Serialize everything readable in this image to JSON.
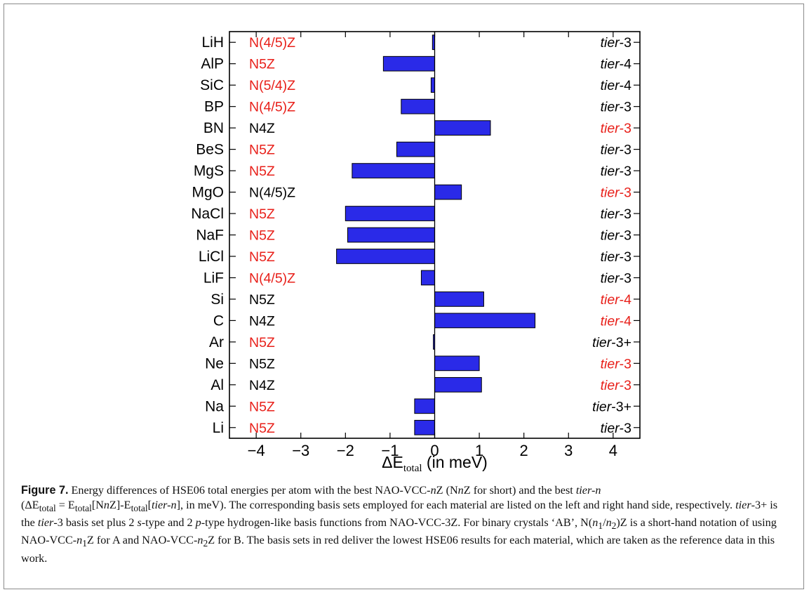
{
  "chart_data": {
    "type": "bar",
    "orientation": "horizontal",
    "xlabel_main": "ΔE",
    "xlabel_sub": "total",
    "xlabel_unit": "(in meV)",
    "xlim": [
      -4.6,
      4.6
    ],
    "xticks": [
      -4,
      -3,
      -2,
      -1,
      0,
      1,
      2,
      3,
      4
    ],
    "bar_color": "#2a2ae8",
    "bar_edge": "#000000",
    "highlight_color": "#e8201a",
    "normal_color": "#000000",
    "tier_prefix": "tier",
    "categories": [
      "LiH",
      "AlP",
      "SiC",
      "BP",
      "BN",
      "BeS",
      "MgS",
      "MgO",
      "NaCl",
      "NaF",
      "LiCl",
      "LiF",
      "Si",
      "C",
      "Ar",
      "Ne",
      "Al",
      "Na",
      "Li"
    ],
    "values": [
      -0.05,
      -1.15,
      -0.08,
      -0.75,
      1.25,
      -0.85,
      -1.85,
      0.6,
      -2.0,
      -1.95,
      -2.2,
      -0.3,
      1.1,
      2.25,
      -0.03,
      1.0,
      1.05,
      -0.45,
      -0.45
    ],
    "left_labels": [
      {
        "text": "N(4/5)Z",
        "red": true
      },
      {
        "text": "N5Z",
        "red": true
      },
      {
        "text": "N(5/4)Z",
        "red": true
      },
      {
        "text": "N(4/5)Z",
        "red": true
      },
      {
        "text": "N4Z",
        "red": false
      },
      {
        "text": "N5Z",
        "red": true
      },
      {
        "text": "N5Z",
        "red": true
      },
      {
        "text": "N(4/5)Z",
        "red": false
      },
      {
        "text": "N5Z",
        "red": true
      },
      {
        "text": "N5Z",
        "red": true
      },
      {
        "text": "N5Z",
        "red": true
      },
      {
        "text": "N(4/5)Z",
        "red": true
      },
      {
        "text": "N5Z",
        "red": false
      },
      {
        "text": "N4Z",
        "red": false
      },
      {
        "text": "N5Z",
        "red": true
      },
      {
        "text": "N5Z",
        "red": false
      },
      {
        "text": "N4Z",
        "red": false
      },
      {
        "text": "N5Z",
        "red": true
      },
      {
        "text": "N5Z",
        "red": true
      }
    ],
    "right_labels": [
      {
        "suffix": "-3",
        "red": false
      },
      {
        "suffix": "-4",
        "red": false
      },
      {
        "suffix": "-4",
        "red": false
      },
      {
        "suffix": "-3",
        "red": false
      },
      {
        "suffix": "-3",
        "red": true
      },
      {
        "suffix": "-3",
        "red": false
      },
      {
        "suffix": "-3",
        "red": false
      },
      {
        "suffix": "-3",
        "red": true
      },
      {
        "suffix": "-3",
        "red": false
      },
      {
        "suffix": "-3",
        "red": false
      },
      {
        "suffix": "-3",
        "red": false
      },
      {
        "suffix": "-3",
        "red": false
      },
      {
        "suffix": "-4",
        "red": true
      },
      {
        "suffix": "-4",
        "red": true
      },
      {
        "suffix": "-3+",
        "red": false
      },
      {
        "suffix": "-3",
        "red": true
      },
      {
        "suffix": "-3",
        "red": true
      },
      {
        "suffix": "-3+",
        "red": false
      },
      {
        "suffix": "-3",
        "red": false
      }
    ]
  },
  "caption": {
    "label": "Figure 7.",
    "p1": " Energy differences of HSE06 total energies per atom with the best NAO-VCC-",
    "p2": "n",
    "p3": "Z (N",
    "p4": "n",
    "p5": "Z for short) and the best ",
    "p6": "tier-n",
    "p7": "(ΔE",
    "p8": "total",
    "p9": " = E",
    "p10": "total",
    "p11": "[N",
    "p12": "n",
    "p13": "Z]-E",
    "p14": "total",
    "p15": "[",
    "p16": "tier-n",
    "p17": "], in meV). The corresponding basis sets employed for each material are listed on the left and right hand side, respectively. ",
    "p18": "tier",
    "p19": "-3+ is the ",
    "p20": "tier",
    "p21": "-3 basis set plus 2 ",
    "p22": "s",
    "p23": "-type and 2 ",
    "p24": "p",
    "p25": "-type hydrogen-like basis functions from NAO-VCC-3Z. For binary crystals ‘AB’, N(",
    "p26": "n",
    "p27": "1",
    "p28": "/",
    "p29": "n",
    "p30": "2",
    "p31": ")Z is a short-hand notation of using NAO-VCC-",
    "p32": "n",
    "p33": "1",
    "p34": "Z for A and NAO-VCC-",
    "p35": "n",
    "p36": "2",
    "p37": "Z for B. The basis sets in red deliver the lowest HSE06 results for each material, which are taken as the reference data in this work."
  }
}
